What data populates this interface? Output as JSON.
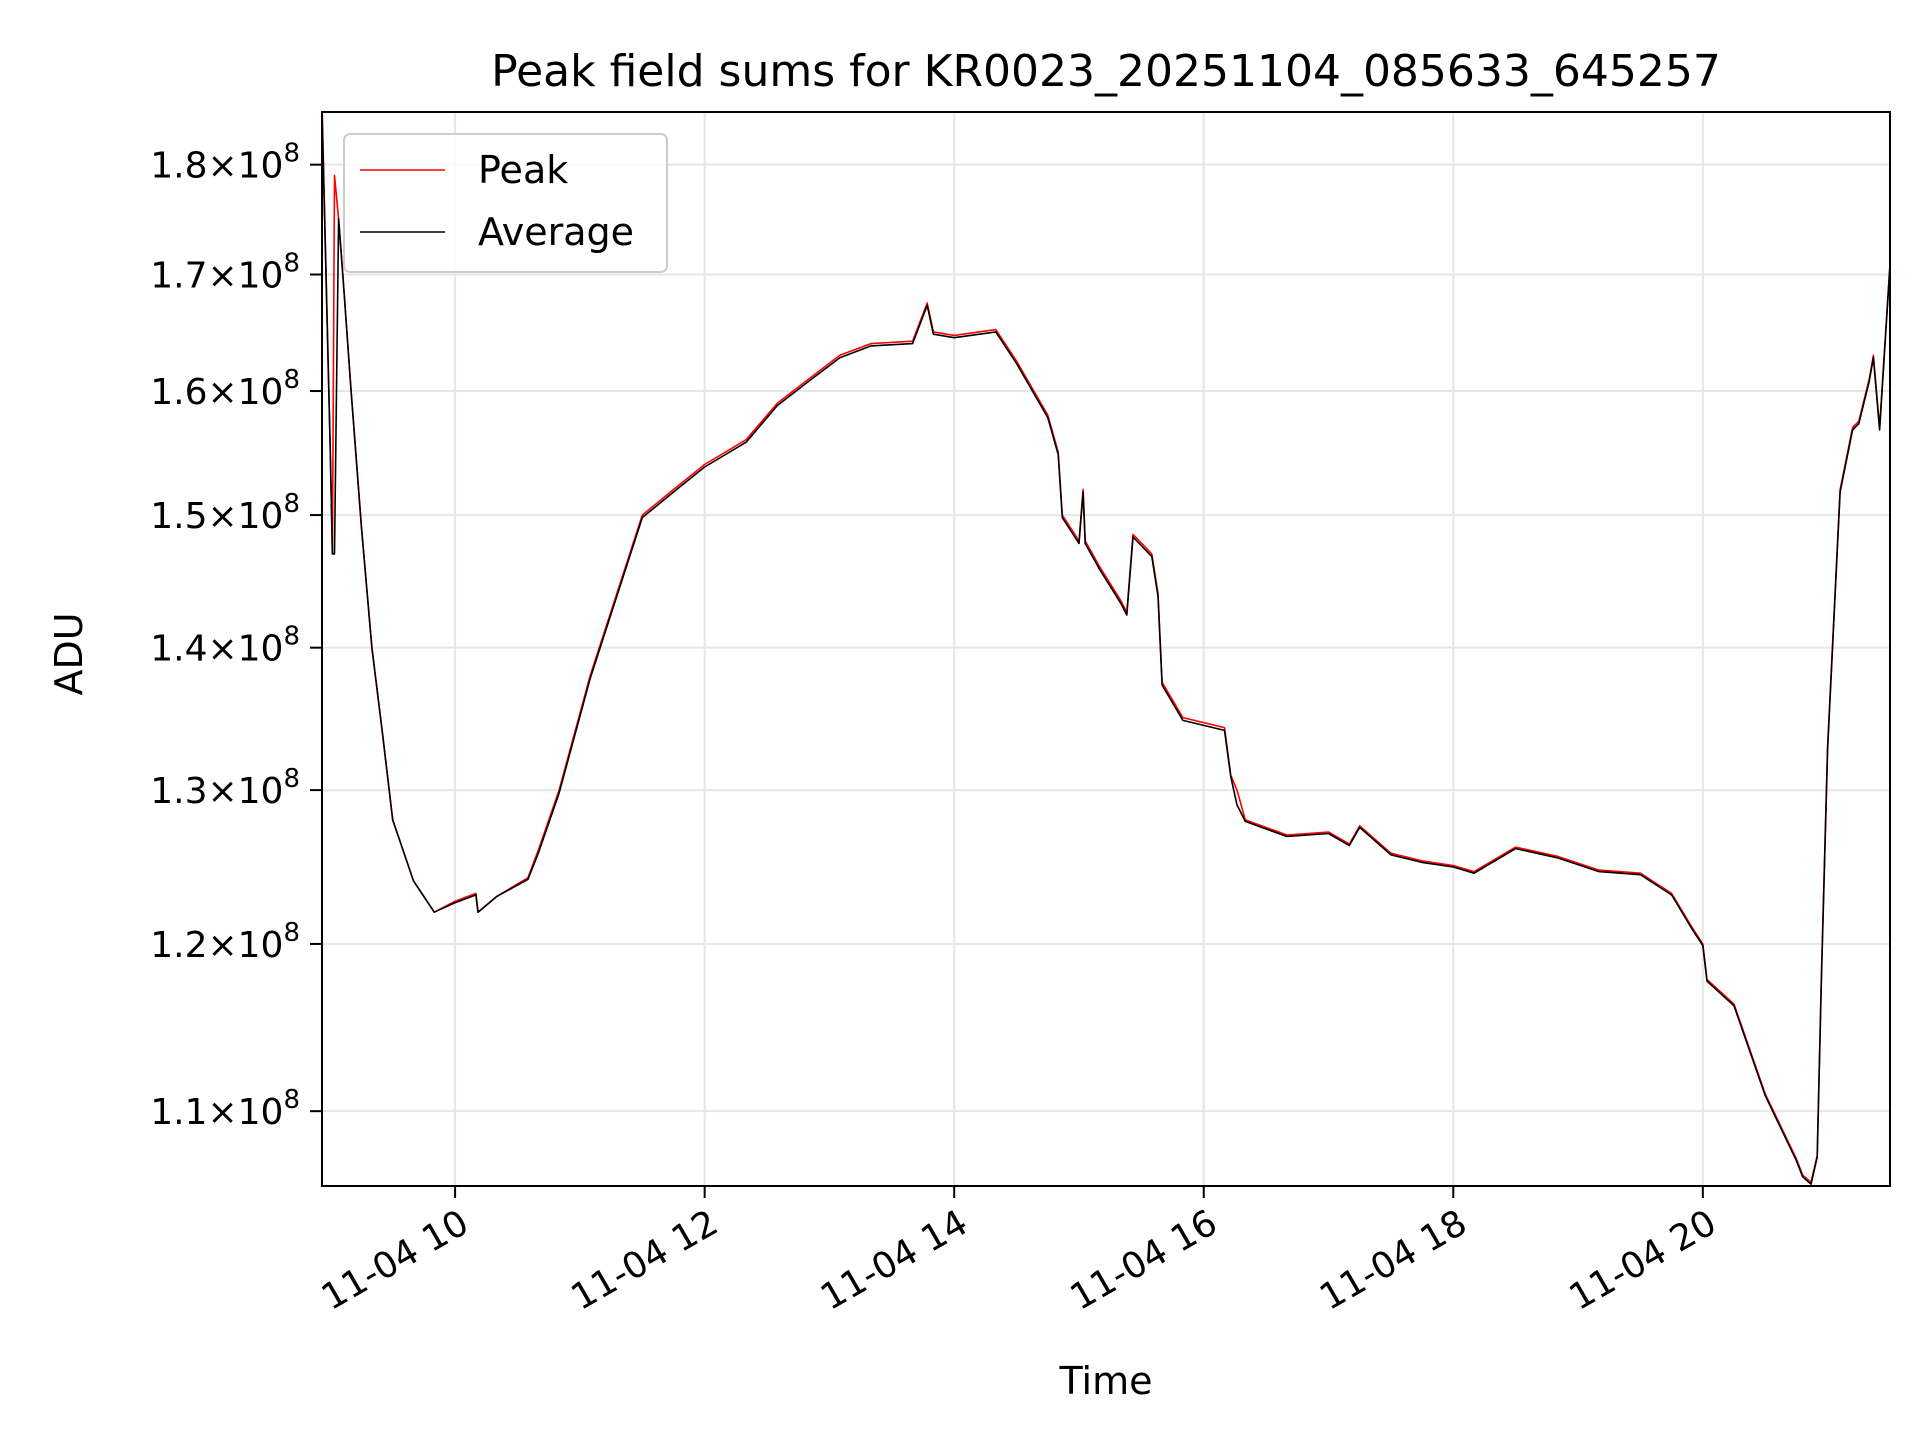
{
  "chart_data": {
    "type": "line",
    "title": "Peak field sums for KR0023_20251104_085633_645257",
    "xlabel": "Time",
    "ylabel": "ADU",
    "yscale": "log",
    "xlim": [
      "2025-11-04 08:56",
      "2025-11-04 21:30"
    ],
    "ylim": [
      105800000,
      185000000
    ],
    "grid": true,
    "legend_position": "top-left",
    "x_ticks": [
      {
        "value": "2025-11-04 10:00",
        "label": "11-04 10"
      },
      {
        "value": "2025-11-04 12:00",
        "label": "11-04 12"
      },
      {
        "value": "2025-11-04 14:00",
        "label": "11-04 14"
      },
      {
        "value": "2025-11-04 16:00",
        "label": "11-04 16"
      },
      {
        "value": "2025-11-04 18:00",
        "label": "11-04 18"
      },
      {
        "value": "2025-11-04 20:00",
        "label": "11-04 20"
      }
    ],
    "y_ticks": [
      {
        "value": 110000000,
        "mantissa": "1.1",
        "exponent": "8"
      },
      {
        "value": 120000000,
        "mantissa": "1.2",
        "exponent": "8"
      },
      {
        "value": 130000000,
        "mantissa": "1.3",
        "exponent": "8"
      },
      {
        "value": 140000000,
        "mantissa": "1.4",
        "exponent": "8"
      },
      {
        "value": 150000000,
        "mantissa": "1.5",
        "exponent": "8"
      },
      {
        "value": 160000000,
        "mantissa": "1.6",
        "exponent": "8"
      },
      {
        "value": 170000000,
        "mantissa": "1.7",
        "exponent": "8"
      },
      {
        "value": 180000000,
        "mantissa": "1.8",
        "exponent": "8"
      }
    ],
    "series": [
      {
        "name": "Peak",
        "color": "#ff0000",
        "x": [
          "2025-11-04 08:56",
          "2025-11-04 09:00",
          "2025-11-04 09:01",
          "2025-11-04 09:02",
          "2025-11-04 09:04",
          "2025-11-04 09:06",
          "2025-11-04 09:10",
          "2025-11-04 09:15",
          "2025-11-04 09:20",
          "2025-11-04 09:25",
          "2025-11-04 09:30",
          "2025-11-04 09:40",
          "2025-11-04 09:50",
          "2025-11-04 10:00",
          "2025-11-04 10:10",
          "2025-11-04 10:11",
          "2025-11-04 10:20",
          "2025-11-04 10:35",
          "2025-11-04 10:40",
          "2025-11-04 10:50",
          "2025-11-04 11:05",
          "2025-11-04 11:30",
          "2025-11-04 11:45",
          "2025-11-04 12:00",
          "2025-11-04 12:20",
          "2025-11-04 12:35",
          "2025-11-04 12:50",
          "2025-11-04 13:05",
          "2025-11-04 13:20",
          "2025-11-04 13:40",
          "2025-11-04 13:47",
          "2025-11-04 13:50",
          "2025-11-04 14:00",
          "2025-11-04 14:20",
          "2025-11-04 14:30",
          "2025-11-04 14:45",
          "2025-11-04 14:50",
          "2025-11-04 14:52",
          "2025-11-04 15:00",
          "2025-11-04 15:02",
          "2025-11-04 15:03",
          "2025-11-04 15:10",
          "2025-11-04 15:20",
          "2025-11-04 15:23",
          "2025-11-04 15:26",
          "2025-11-04 15:35",
          "2025-11-04 15:38",
          "2025-11-04 15:40",
          "2025-11-04 15:50",
          "2025-11-04 16:10",
          "2025-11-04 16:13",
          "2025-11-04 16:16",
          "2025-11-04 16:20",
          "2025-11-04 16:40",
          "2025-11-04 17:00",
          "2025-11-04 17:10",
          "2025-11-04 17:15",
          "2025-11-04 17:30",
          "2025-11-04 17:45",
          "2025-11-04 18:00",
          "2025-11-04 18:10",
          "2025-11-04 18:30",
          "2025-11-04 18:50",
          "2025-11-04 19:10",
          "2025-11-04 19:30",
          "2025-11-04 19:45",
          "2025-11-04 19:55",
          "2025-11-04 20:00",
          "2025-11-04 20:02",
          "2025-11-04 20:15",
          "2025-11-04 20:30",
          "2025-11-04 20:45",
          "2025-11-04 20:48",
          "2025-11-04 20:52",
          "2025-11-04 20:55",
          "2025-11-04 20:57",
          "2025-11-04 21:00",
          "2025-11-04 21:06",
          "2025-11-04 21:12",
          "2025-11-04 21:15",
          "2025-11-04 21:20",
          "2025-11-04 21:22",
          "2025-11-04 21:25",
          "2025-11-04 21:30"
        ],
        "values": [
          186000000,
          155000000,
          147000000,
          179000000,
          175000000,
          170000000,
          160000000,
          149000000,
          140000000,
          134000000,
          128000000,
          124000000,
          122000000,
          122700000,
          123200000,
          122000000,
          123000000,
          124200000,
          126000000,
          130000000,
          138000000,
          150000000,
          152000000,
          154000000,
          156000000,
          159000000,
          161000000,
          163000000,
          164000000,
          164200000,
          167500000,
          165000000,
          164700000,
          165200000,
          162500000,
          158000000,
          155000000,
          150000000,
          148000000,
          152000000,
          148000000,
          146000000,
          143500000,
          142600000,
          148500000,
          147000000,
          144000000,
          137500000,
          135000000,
          134300000,
          131000000,
          130000000,
          128000000,
          127000000,
          127200000,
          126400000,
          127600000,
          125800000,
          125300000,
          125000000,
          124600000,
          126200000,
          125600000,
          124700000,
          124500000,
          123200000,
          121000000,
          120000000,
          117800000,
          116300000,
          111000000,
          107300000,
          106400000,
          106000000,
          107500000,
          118000000,
          133000000,
          152000000,
          157000000,
          157500000,
          161000000,
          163000000,
          157000000,
          171000000
        ]
      },
      {
        "name": "Average",
        "color": "#000000",
        "x": [
          "2025-11-04 08:56",
          "2025-11-04 09:00",
          "2025-11-04 09:01",
          "2025-11-04 09:02",
          "2025-11-04 09:04",
          "2025-11-04 09:06",
          "2025-11-04 09:10",
          "2025-11-04 09:15",
          "2025-11-04 09:20",
          "2025-11-04 09:25",
          "2025-11-04 09:30",
          "2025-11-04 09:40",
          "2025-11-04 09:50",
          "2025-11-04 10:00",
          "2025-11-04 10:10",
          "2025-11-04 10:11",
          "2025-11-04 10:20",
          "2025-11-04 10:35",
          "2025-11-04 10:40",
          "2025-11-04 10:50",
          "2025-11-04 11:05",
          "2025-11-04 11:30",
          "2025-11-04 11:45",
          "2025-11-04 12:00",
          "2025-11-04 12:20",
          "2025-11-04 12:35",
          "2025-11-04 12:50",
          "2025-11-04 13:05",
          "2025-11-04 13:20",
          "2025-11-04 13:40",
          "2025-11-04 13:47",
          "2025-11-04 13:50",
          "2025-11-04 14:00",
          "2025-11-04 14:20",
          "2025-11-04 14:30",
          "2025-11-04 14:45",
          "2025-11-04 14:50",
          "2025-11-04 14:52",
          "2025-11-04 15:00",
          "2025-11-04 15:02",
          "2025-11-04 15:03",
          "2025-11-04 15:10",
          "2025-11-04 15:20",
          "2025-11-04 15:23",
          "2025-11-04 15:26",
          "2025-11-04 15:35",
          "2025-11-04 15:38",
          "2025-11-04 15:40",
          "2025-11-04 15:50",
          "2025-11-04 16:10",
          "2025-11-04 16:13",
          "2025-11-04 16:16",
          "2025-11-04 16:20",
          "2025-11-04 16:40",
          "2025-11-04 17:00",
          "2025-11-04 17:10",
          "2025-11-04 17:15",
          "2025-11-04 17:30",
          "2025-11-04 17:45",
          "2025-11-04 18:00",
          "2025-11-04 18:10",
          "2025-11-04 18:30",
          "2025-11-04 18:50",
          "2025-11-04 19:10",
          "2025-11-04 19:30",
          "2025-11-04 19:45",
          "2025-11-04 19:55",
          "2025-11-04 20:00",
          "2025-11-04 20:02",
          "2025-11-04 20:15",
          "2025-11-04 20:30",
          "2025-11-04 20:45",
          "2025-11-04 20:48",
          "2025-11-04 20:52",
          "2025-11-04 20:55",
          "2025-11-04 20:57",
          "2025-11-04 21:00",
          "2025-11-04 21:06",
          "2025-11-04 21:12",
          "2025-11-04 21:15",
          "2025-11-04 21:20",
          "2025-11-04 21:22",
          "2025-11-04 21:25",
          "2025-11-04 21:30"
        ],
        "values": [
          185000000,
          155000000,
          147000000,
          147000000,
          175000000,
          170000000,
          160000000,
          149000000,
          140000000,
          134000000,
          128000000,
          124000000,
          122000000,
          122600000,
          123100000,
          122000000,
          123000000,
          124100000,
          125800000,
          129800000,
          137800000,
          149800000,
          151800000,
          153800000,
          155800000,
          158800000,
          160800000,
          162800000,
          163800000,
          164000000,
          167300000,
          164800000,
          164500000,
          165000000,
          162300000,
          157800000,
          154800000,
          149800000,
          147800000,
          151800000,
          147800000,
          145800000,
          143300000,
          142400000,
          148300000,
          146800000,
          143800000,
          137300000,
          134800000,
          134100000,
          130900000,
          129000000,
          127900000,
          126900000,
          127100000,
          126300000,
          127500000,
          125700000,
          125200000,
          124900000,
          124500000,
          126100000,
          125500000,
          124600000,
          124400000,
          123100000,
          120900000,
          119900000,
          117700000,
          116200000,
          110900000,
          107200000,
          106300000,
          105900000,
          107400000,
          117800000,
          132800000,
          151800000,
          156800000,
          157300000,
          160800000,
          162800000,
          156800000,
          170800000
        ]
      }
    ]
  }
}
